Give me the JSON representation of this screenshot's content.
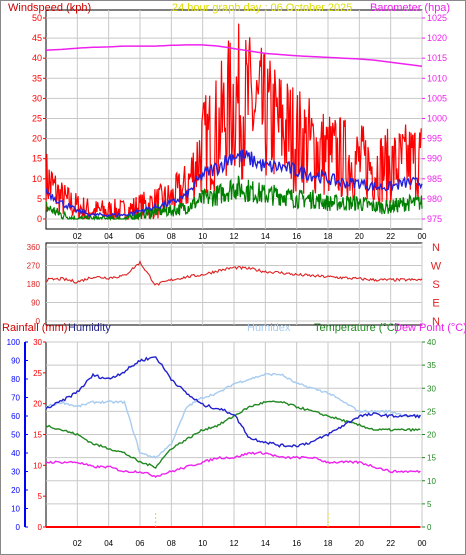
{
  "title": "24 hour graph day : 06 October 2025",
  "colors": {
    "wind": "#ff0000",
    "gust_fill": "#ff0000",
    "avg": "#2222dd",
    "min": "#008000",
    "baro": "#ee22ee",
    "dir": "#dd2222",
    "rain": "#ff0000",
    "rainaxis": "#0000ff",
    "humidity": "#2222cc",
    "humidex": "#a8ccf0",
    "temp": "#228822",
    "dew": "#ee22ee",
    "grid": "#c8c8c8",
    "axis": "#000000",
    "title": "#dddd00",
    "cyan": "#22bbbb",
    "rainmark": "#dddd00"
  },
  "time_ticks": [
    "02",
    "04",
    "06",
    "08",
    "10",
    "12",
    "14",
    "16",
    "18",
    "20",
    "22",
    "00"
  ],
  "panel1": {
    "left_label": "Windspeed (kph)",
    "right_label": "Barometer (hpa)",
    "left_ticks": [
      "0",
      "5",
      "10",
      "15",
      "20",
      "25",
      "30",
      "35",
      "40",
      "45",
      "50"
    ],
    "right_ticks": [
      "975",
      "980",
      "985",
      "990",
      "995",
      "1000",
      "1005",
      "1010",
      "1015",
      "1020",
      "1025"
    ]
  },
  "panel2": {
    "ticks": [
      "0",
      "90",
      "180",
      "270",
      "360"
    ],
    "compass": [
      "N",
      "W",
      "S",
      "E",
      "N"
    ]
  },
  "panel3": {
    "labels": {
      "rainfall": "Rainfall (mm)",
      "humidity": "Humidity",
      "humidex": "Humidex",
      "temperature": "Temperature (°C)",
      "dewpoint": "Dew Point (°C)"
    },
    "hum_ticks": [
      "0",
      "10",
      "20",
      "30",
      "40",
      "50",
      "60",
      "70",
      "80",
      "90",
      "100"
    ],
    "rain_ticks": [
      "0",
      "5",
      "10",
      "15",
      "20",
      "25",
      "30"
    ],
    "temp_ticks": [
      "0",
      "5",
      "10",
      "15",
      "20",
      "25",
      "30",
      "35",
      "40"
    ]
  },
  "chart_data": [
    {
      "type": "line",
      "title": "24 hour graph day : 06 October 2025",
      "xlabel": "",
      "ylabel": "Windspeed (kph)",
      "ylim": [
        0,
        50
      ],
      "x": [
        0,
        1,
        2,
        3,
        4,
        5,
        6,
        7,
        8,
        9,
        10,
        11,
        12,
        13,
        14,
        15,
        16,
        17,
        18,
        19,
        20,
        21,
        22,
        23,
        24
      ],
      "series": [
        {
          "name": "gust",
          "values": [
            10,
            5,
            3,
            2,
            2,
            2,
            3,
            4,
            5,
            8,
            18,
            22,
            30,
            28,
            25,
            23,
            20,
            18,
            16,
            15,
            14,
            13,
            13,
            14,
            15
          ]
        },
        {
          "name": "average",
          "values": [
            7,
            4,
            2,
            1,
            1,
            1,
            2,
            3,
            4,
            6,
            11,
            13,
            16,
            15,
            13,
            13,
            12,
            11,
            10,
            9,
            9,
            8,
            8,
            9,
            9
          ]
        },
        {
          "name": "minimum",
          "values": [
            3,
            1,
            0,
            0,
            0,
            0,
            1,
            2,
            2,
            3,
            5,
            6,
            8,
            7,
            6,
            6,
            5,
            5,
            4,
            4,
            4,
            3,
            3,
            4,
            4
          ]
        }
      ],
      "y2label": "Barometer (hpa)",
      "y2lim": [
        975,
        1025
      ],
      "series_right": [
        {
          "name": "barometer",
          "values": [
            1017,
            1017.2,
            1017.5,
            1017.7,
            1017.8,
            1018,
            1018,
            1018,
            1018.2,
            1018.3,
            1018.3,
            1018,
            1017.4,
            1016.8,
            1016.2,
            1015.9,
            1015.6,
            1015.4,
            1015.2,
            1015,
            1014.8,
            1014.5,
            1014,
            1013.5,
            1013
          ]
        }
      ]
    },
    {
      "type": "line",
      "ylim": [
        0,
        360
      ],
      "x": [
        0,
        1,
        2,
        3,
        4,
        5,
        6,
        7,
        8,
        9,
        10,
        11,
        12,
        13,
        14,
        15,
        16,
        17,
        18,
        19,
        20,
        21,
        22,
        23,
        24
      ],
      "series": [
        {
          "name": "direction",
          "values": [
            200,
            205,
            190,
            215,
            210,
            220,
            285,
            175,
            200,
            215,
            225,
            245,
            260,
            255,
            240,
            235,
            225,
            220,
            215,
            210,
            205,
            200,
            200,
            200,
            200
          ]
        }
      ]
    },
    {
      "type": "line",
      "x": [
        0,
        1,
        2,
        3,
        4,
        5,
        6,
        7,
        8,
        9,
        10,
        11,
        12,
        13,
        14,
        15,
        16,
        17,
        18,
        19,
        20,
        21,
        22,
        23,
        24
      ],
      "series": [
        {
          "name": "Humidity",
          "axis": "humidity",
          "ylim": [
            0,
            100
          ],
          "values": [
            64,
            68,
            73,
            82,
            80,
            84,
            90,
            92,
            80,
            72,
            66,
            64,
            61,
            48,
            46,
            44,
            44,
            46,
            50,
            55,
            60,
            61,
            60,
            60,
            60
          ]
        },
        {
          "name": "Humidex",
          "axis": "temp",
          "ylim": [
            0,
            40
          ],
          "values": [
            26,
            27,
            26,
            27,
            27,
            27,
            16,
            15,
            18,
            26,
            28,
            29,
            31,
            32,
            33,
            33,
            31,
            30,
            29,
            27,
            25,
            25,
            25,
            24,
            24
          ]
        },
        {
          "name": "Temperature (°C)",
          "axis": "temp",
          "ylim": [
            0,
            40
          ],
          "values": [
            22,
            21,
            20,
            18,
            17,
            16,
            14,
            13,
            17,
            19,
            21,
            22,
            24,
            26,
            27,
            27,
            26,
            25,
            24,
            23,
            22,
            21,
            21,
            21,
            21
          ]
        },
        {
          "name": "Dew Point (°C)",
          "axis": "temp",
          "ylim": [
            0,
            40
          ],
          "values": [
            14,
            14,
            14,
            13,
            13,
            12,
            12,
            11,
            12,
            13,
            14,
            15,
            15,
            16,
            16,
            15,
            15,
            15,
            14,
            14,
            14,
            13,
            12,
            12,
            12
          ]
        },
        {
          "name": "Rainfall (mm)",
          "axis": "rain",
          "ylim": [
            0,
            30
          ],
          "values": [
            0,
            0,
            0,
            0,
            0,
            0,
            0,
            0,
            0,
            0,
            0,
            0,
            0,
            0,
            0,
            0,
            0,
            0,
            0,
            0,
            0,
            0,
            0,
            0,
            0
          ]
        }
      ]
    }
  ]
}
